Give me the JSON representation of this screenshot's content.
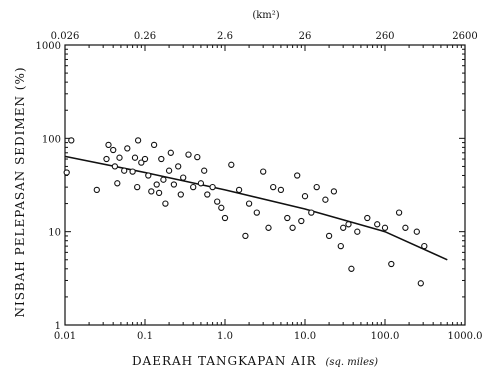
{
  "chart_data": {
    "type": "scatter",
    "title": "",
    "xlabel": "DAERAH TANGKAPAN AIR",
    "xlabel_unit": "(sq. miles)",
    "ylabel": "NISBAH PELEPASAN SEDIMEN (%)",
    "xscale": "log",
    "yscale": "log",
    "xlim": [
      0.01,
      1000
    ],
    "ylim": [
      1,
      1000
    ],
    "x_ticks": [
      "0.01",
      "0.1",
      "1.0",
      "10.0",
      "100.0",
      "1000.0"
    ],
    "x_tick_values": [
      0.01,
      0.1,
      1,
      10,
      100,
      1000
    ],
    "y_ticks": [
      "1",
      "10",
      "100",
      "1000"
    ],
    "y_tick_values": [
      1,
      10,
      100,
      1000
    ],
    "top_axis": {
      "label": "(km²)",
      "ticks": [
        "0.026",
        "0.26",
        "2.6",
        "26",
        "260",
        "2600"
      ],
      "tick_values_sq_miles": [
        0.01,
        0.1,
        1,
        10,
        100,
        1000
      ]
    },
    "grid": false,
    "legend": "none",
    "series": [
      {
        "kind": "points",
        "marker": "open-circle",
        "points": [
          [
            0.012,
            95
          ],
          [
            0.0105,
            43
          ],
          [
            0.025,
            28
          ],
          [
            0.033,
            60
          ],
          [
            0.035,
            85
          ],
          [
            0.04,
            75
          ],
          [
            0.042,
            50
          ],
          [
            0.045,
            33
          ],
          [
            0.048,
            62
          ],
          [
            0.055,
            45
          ],
          [
            0.06,
            78
          ],
          [
            0.07,
            44
          ],
          [
            0.075,
            62
          ],
          [
            0.08,
            30
          ],
          [
            0.082,
            95
          ],
          [
            0.09,
            55
          ],
          [
            0.1,
            60
          ],
          [
            0.11,
            40
          ],
          [
            0.12,
            27
          ],
          [
            0.13,
            85
          ],
          [
            0.14,
            32
          ],
          [
            0.15,
            26
          ],
          [
            0.16,
            60
          ],
          [
            0.17,
            36
          ],
          [
            0.18,
            20
          ],
          [
            0.2,
            45
          ],
          [
            0.21,
            70
          ],
          [
            0.23,
            32
          ],
          [
            0.26,
            50
          ],
          [
            0.28,
            25
          ],
          [
            0.3,
            38
          ],
          [
            0.35,
            67
          ],
          [
            0.4,
            30
          ],
          [
            0.45,
            63
          ],
          [
            0.5,
            33
          ],
          [
            0.55,
            45
          ],
          [
            0.6,
            25
          ],
          [
            0.7,
            30
          ],
          [
            0.8,
            21
          ],
          [
            0.9,
            18
          ],
          [
            1.0,
            14
          ],
          [
            1.2,
            52
          ],
          [
            1.5,
            28
          ],
          [
            1.8,
            9
          ],
          [
            2.0,
            20
          ],
          [
            2.5,
            16
          ],
          [
            3.0,
            44
          ],
          [
            3.5,
            11
          ],
          [
            4.0,
            30
          ],
          [
            5.0,
            28
          ],
          [
            6.0,
            14
          ],
          [
            7.0,
            11
          ],
          [
            8.0,
            40
          ],
          [
            9.0,
            13
          ],
          [
            10.0,
            24
          ],
          [
            12.0,
            16
          ],
          [
            14.0,
            30
          ],
          [
            18.0,
            22
          ],
          [
            20.0,
            9
          ],
          [
            23.0,
            27
          ],
          [
            28.0,
            7
          ],
          [
            30.0,
            11
          ],
          [
            35.0,
            12
          ],
          [
            38.0,
            4
          ],
          [
            45.0,
            10
          ],
          [
            60.0,
            14
          ],
          [
            80.0,
            12
          ],
          [
            100.0,
            11
          ],
          [
            120.0,
            4.5
          ],
          [
            150.0,
            16
          ],
          [
            180.0,
            11
          ],
          [
            250.0,
            10
          ],
          [
            280.0,
            2.8
          ],
          [
            310.0,
            7
          ]
        ]
      },
      {
        "kind": "trend",
        "line": [
          [
            0.01,
            64
          ],
          [
            0.1,
            43
          ],
          [
            1.0,
            28
          ],
          [
            10.0,
            17.5
          ],
          [
            100.0,
            10
          ],
          [
            600.0,
            5
          ]
        ]
      }
    ]
  }
}
